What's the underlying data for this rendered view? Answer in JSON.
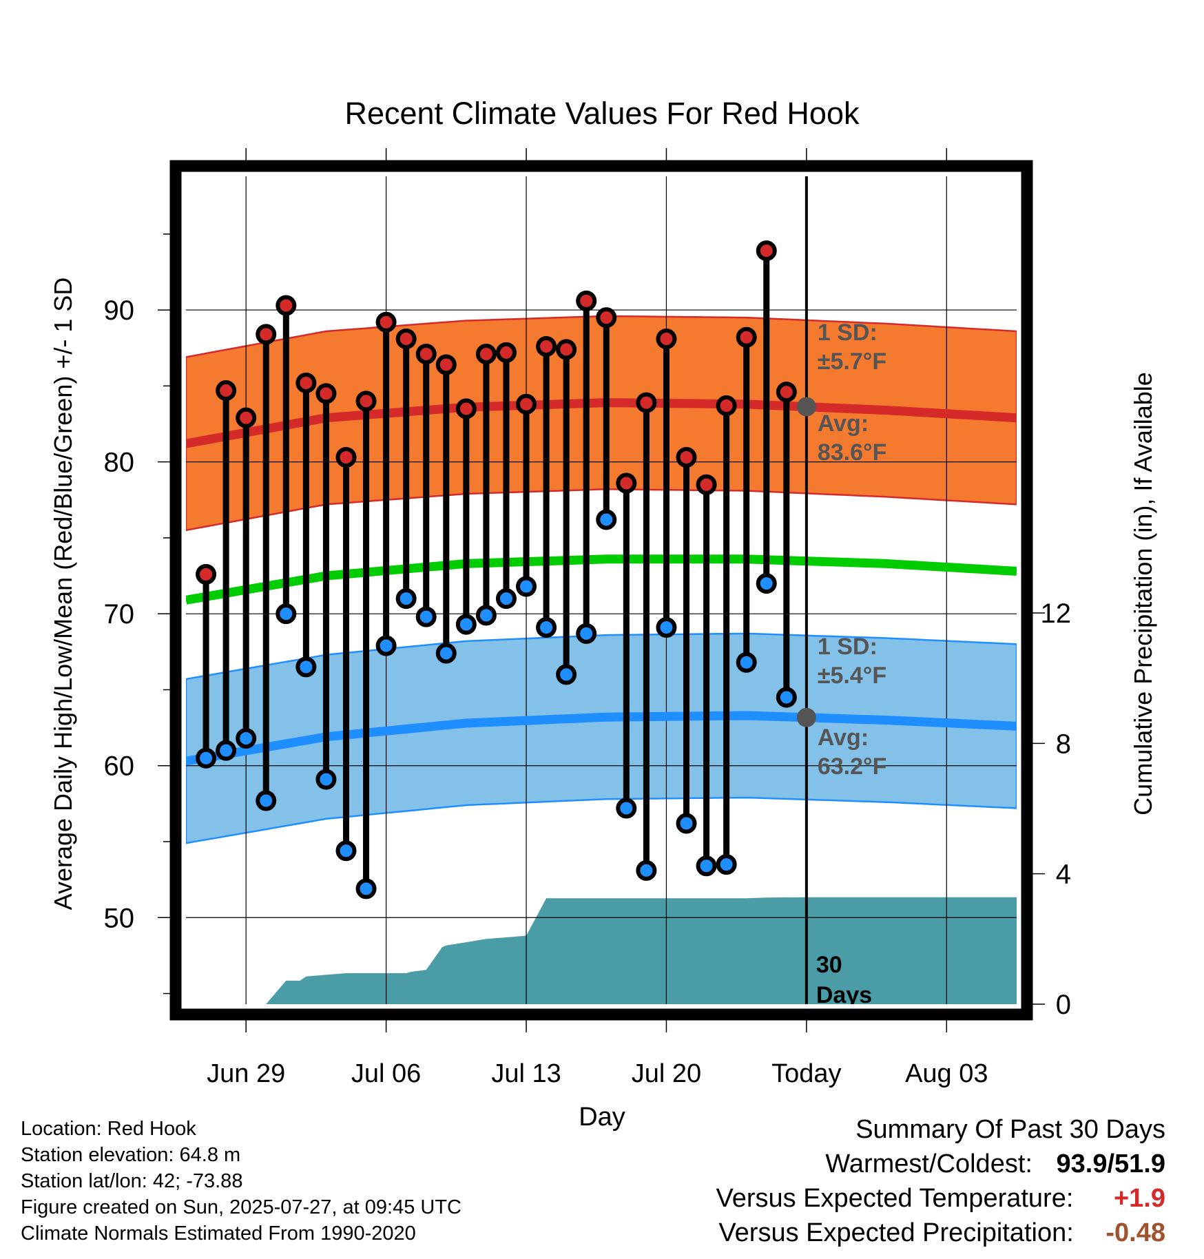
{
  "chart_data": {
    "type": "line",
    "title": "Recent Climate Values For Red Hook",
    "xlabel": "Day",
    "ylabel_left": "Average Daily High/Low/Mean (Red/Blue/Green) +/- 1 SD",
    "ylabel_right": "Cumulative Precipitation (in), If Available",
    "x_tick_labels": [
      "Jun 29",
      "Jul 06",
      "Jul 13",
      "Jul 20",
      "Today",
      "Aug 03"
    ],
    "x_tick_days": [
      3,
      10,
      17,
      24,
      31,
      38
    ],
    "x_range_days": [
      0,
      41.5
    ],
    "y_left_ticks": [
      50,
      60,
      70,
      80,
      90
    ],
    "y_left_range": [
      44.3,
      98.8
    ],
    "y_right_ticks": [
      0,
      4,
      8,
      12
    ],
    "y_right_range": [
      0,
      12
    ],
    "grid": true,
    "today_day": 31,
    "observed_days": [
      1,
      2,
      3,
      4,
      5,
      6,
      7,
      8,
      9,
      10,
      11,
      12,
      13,
      14,
      15,
      16,
      17,
      18,
      19,
      20,
      21,
      22,
      23,
      24,
      25,
      26,
      27,
      28,
      29,
      30
    ],
    "observed_high": [
      72.6,
      84.7,
      82.9,
      88.4,
      90.3,
      85.2,
      84.5,
      80.3,
      84.0,
      89.2,
      88.1,
      87.1,
      86.4,
      83.5,
      87.1,
      87.2,
      83.8,
      87.6,
      87.4,
      90.6,
      89.5,
      78.6,
      83.9,
      88.1,
      80.3,
      78.5,
      83.7,
      88.2,
      93.9,
      84.6
    ],
    "observed_low": [
      60.5,
      61.0,
      61.8,
      57.7,
      70.0,
      66.5,
      59.1,
      54.4,
      51.9,
      67.9,
      71.0,
      69.8,
      67.4,
      69.3,
      69.9,
      71.0,
      71.8,
      69.1,
      66.0,
      68.7,
      76.2,
      57.2,
      53.1,
      69.1,
      56.2,
      53.4,
      53.5,
      66.8,
      72.0,
      64.5
    ],
    "normal_days": [
      0,
      7,
      14,
      21,
      28,
      35,
      41.5
    ],
    "normal_high_avg": [
      81.2,
      82.9,
      83.6,
      83.9,
      83.8,
      83.4,
      82.9
    ],
    "normal_high_sd": 5.7,
    "normal_mean": [
      70.9,
      72.5,
      73.3,
      73.6,
      73.6,
      73.3,
      72.8
    ],
    "normal_low_avg": [
      60.3,
      61.9,
      62.8,
      63.2,
      63.3,
      63.0,
      62.6
    ],
    "normal_low_sd": 5.4,
    "precip_days": [
      0,
      4,
      5,
      5.7,
      6,
      7,
      8,
      9,
      10,
      11,
      11.3,
      12,
      12.8,
      13,
      14,
      15,
      16,
      17,
      18,
      19,
      20,
      24,
      28,
      29,
      31,
      41.5
    ],
    "precip_cumulative": [
      0,
      0,
      0.72,
      0.72,
      0.85,
      0.9,
      0.95,
      0.95,
      0.95,
      0.95,
      1.0,
      1.05,
      1.75,
      1.8,
      1.9,
      2.0,
      2.05,
      2.1,
      3.25,
      3.25,
      3.25,
      3.25,
      3.25,
      3.27,
      3.28,
      3.28
    ],
    "labels": {
      "high_sd": "1 SD:",
      "high_sd_value": "±5.7°F",
      "high_avg": "Avg:",
      "high_avg_value": "83.6°F",
      "low_sd": "1 SD:",
      "low_sd_value": "±5.4°F",
      "low_avg": "Avg:",
      "low_avg_value": "63.2°F",
      "days_number": "30",
      "days_word": "Days"
    },
    "colors": {
      "high_band": "#f47a30",
      "high_line": "#d42a2a",
      "low_band": "#84c1e8",
      "low_line": "#1f8fff",
      "mean_line": "#00cc00",
      "precip": "#4a9ca6",
      "high_dot": "#d42a2a",
      "low_dot": "#1f8fff",
      "label_gray": "#555555"
    }
  },
  "info": {
    "location": "Location: Red Hook",
    "elevation": "Station elevation: 64.8 m",
    "latlon": "Station lat/lon: 42; -73.88",
    "created": "Figure created on Sun, 2025-07-27, at 09:45 UTC",
    "normals": "Climate Normals Estimated From 1990-2020"
  },
  "summary": {
    "title": "Summary Of Past 30 Days",
    "warmest_label": "Warmest/Coldest:",
    "warmest_value": "93.9/51.9",
    "temp_label": "Versus Expected Temperature:",
    "temp_value": "+1.9",
    "temp_color": "#d42a2a",
    "precip_label": "Versus Expected Precipitation:",
    "precip_value": "-0.48",
    "precip_color": "#a0522d"
  }
}
